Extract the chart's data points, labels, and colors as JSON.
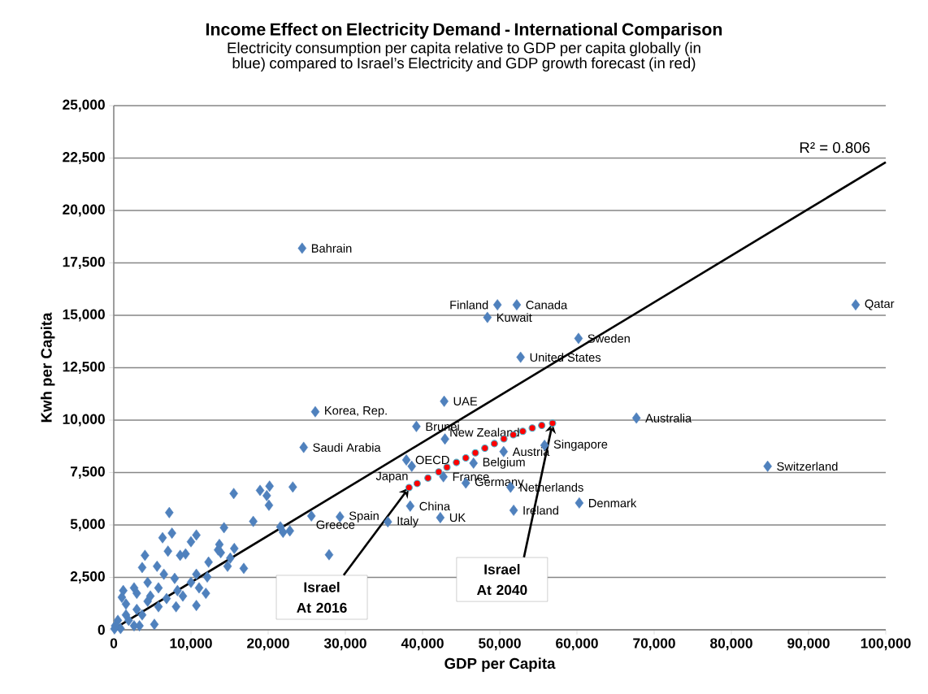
{
  "chart_data": {
    "type": "scatter",
    "title": "Income Effect on Electricity Demand - International Comparison",
    "subtitle": "Electricity consumption per capita relative to GDP per capita globally (in blue) compared to Israel’s Electricity and GDP growth forecast (in red)",
    "xlabel": "GDP per Capita",
    "ylabel": "Kwh per Capita",
    "xlim": [
      0,
      100000
    ],
    "ylim": [
      0,
      25000
    ],
    "xticks": [
      0,
      {
        "value": 10000,
        "label": "10,000"
      },
      {
        "value": 20000,
        "label": "20,000"
      },
      {
        "value": 30000,
        "label": "30,000"
      },
      {
        "value": 40000,
        "label": "40,000"
      },
      {
        "value": 50000,
        "label": "50,000"
      },
      {
        "value": 60000,
        "label": "60,000"
      },
      {
        "value": 70000,
        "label": "70,000"
      },
      {
        "value": 80000,
        "label": "80,000"
      },
      {
        "value": 90000,
        "label": "90,000"
      },
      {
        "value": 100000,
        "label": "100,000"
      }
    ],
    "yticks": [
      0,
      {
        "value": 2500,
        "label": "2,500"
      },
      {
        "value": 5000,
        "label": "5,000"
      },
      {
        "value": 7500,
        "label": "7,500"
      },
      {
        "value": 10000,
        "label": "10,000"
      },
      {
        "value": 12500,
        "label": "12,500"
      },
      {
        "value": 15000,
        "label": "15,000"
      },
      {
        "value": 17500,
        "label": "17,500"
      },
      {
        "value": 20000,
        "label": "20,000"
      },
      {
        "value": 22500,
        "label": "22,500"
      },
      {
        "value": 25000,
        "label": "25,000"
      }
    ],
    "grid": "y",
    "series": [
      {
        "color": "#4f81bd",
        "marker": "diamond",
        "x": [
          24400,
          49700,
          52200,
          48400,
          60200,
          52700,
          96100,
          42800,
          26100,
          39200,
          67700,
          24600,
          37900,
          38600,
          42900,
          50500,
          55800,
          46600,
          42700,
          45600,
          51400,
          84700,
          60300,
          51800,
          38400,
          42300,
          35500,
          29300,
          25600,
          20180,
          18950,
          19820,
          20100,
          23190,
          15540,
          7190,
          18070,
          14280,
          21580,
          22810,
          21930,
          7540,
          6320,
          10700,
          10000,
          13680,
          15610,
          7020,
          8600,
          4040,
          9300,
          13860,
          15090,
          16840,
          14740,
          12280,
          5610,
          3680,
          6490,
          7890,
          10700,
          12110,
          10000,
          11050,
          8250,
          5790,
          4390,
          2630,
          1230,
          2980,
          1050,
          4390,
          6840,
          10700,
          8070,
          5790,
          2980,
          1580,
          530,
          180,
          1930,
          3680,
          5260,
          27890,
          13510,
          11930,
          8950,
          4740,
          1580,
          3330,
          880,
          100,
          2630
        ],
        "values": [
          18200,
          15500,
          15500,
          14900,
          13900,
          13000,
          15500,
          10900,
          10400,
          9700,
          10100,
          8700,
          8100,
          7800,
          9100,
          8500,
          8800,
          7950,
          7300,
          7000,
          6800,
          7800,
          6050,
          5700,
          5900,
          5350,
          5150,
          5390,
          5430,
          6850,
          6650,
          6400,
          5940,
          6810,
          6500,
          5590,
          5170,
          4870,
          4910,
          4720,
          4650,
          4610,
          4390,
          4520,
          4200,
          4070,
          3880,
          3750,
          3550,
          3550,
          3620,
          3680,
          3420,
          2930,
          3030,
          3230,
          3030,
          2970,
          2650,
          2450,
          2650,
          2520,
          2260,
          2000,
          1870,
          2000,
          2260,
          2000,
          1870,
          1740,
          1550,
          1360,
          1490,
          1160,
          1100,
          1100,
          970,
          710,
          450,
          190,
          450,
          710,
          260,
          3580,
          3810,
          1740,
          1610,
          1610,
          1230,
          190,
          60,
          50,
          190
        ]
      },
      {
        "color": "#ff0000",
        "marker": "circle",
        "x": [
          38250,
          39300,
          40700,
          42100,
          43160,
          44390,
          45600,
          46840,
          48070,
          49300,
          50530,
          51750,
          52980,
          54210,
          55440,
          56840
        ],
        "values": [
          6780,
          6980,
          7240,
          7530,
          7750,
          7980,
          8200,
          8440,
          8660,
          8880,
          9110,
          9300,
          9470,
          9620,
          9750,
          9850
        ]
      },
      {
        "type": "line",
        "color": "#000000",
        "x": [
          500,
          100000
        ],
        "values": [
          150,
          22300
        ]
      }
    ],
    "annotations": [
      {
        "text": "Israel At 2016",
        "x": 38250,
        "y": 6780
      },
      {
        "text": "Israel At 2040",
        "x": 56840,
        "y": 9850
      },
      "R² = 0.806",
      {
        "text": "Bahrain",
        "x": 24400,
        "y": 18200
      },
      {
        "text": "Finland",
        "x": 49700,
        "y": 15500
      },
      {
        "text": "Canada",
        "x": 52200,
        "y": 15500
      },
      {
        "text": "Kuwait",
        "x": 48400,
        "y": 14900
      },
      {
        "text": "Sweden",
        "x": 60200,
        "y": 13900
      },
      {
        "text": "United States",
        "x": 52700,
        "y": 13000
      },
      {
        "text": "Qatar",
        "x": 96100,
        "y": 15500
      },
      {
        "text": "UAE",
        "x": 42800,
        "y": 10900
      },
      {
        "text": "Korea, Rep.",
        "x": 26100,
        "y": 10400
      },
      {
        "text": "Brunei",
        "x": 39200,
        "y": 9700
      },
      {
        "text": "Australia",
        "x": 67700,
        "y": 10100
      },
      {
        "text": "Saudi Arabia",
        "x": 24600,
        "y": 8700
      },
      {
        "text": "OECD",
        "x": 37900,
        "y": 8100
      },
      {
        "text": "Japan",
        "x": 38600,
        "y": 7800
      },
      {
        "text": "New Zealand",
        "x": 42900,
        "y": 9100
      },
      {
        "text": "Austria",
        "x": 50500,
        "y": 8500
      },
      {
        "text": "Singapore",
        "x": 55800,
        "y": 8800
      },
      {
        "text": "Belgium",
        "x": 46600,
        "y": 7950
      },
      {
        "text": "France",
        "x": 42700,
        "y": 7300
      },
      {
        "text": "Germany",
        "x": 45600,
        "y": 7000
      },
      {
        "text": "Netherlands",
        "x": 51400,
        "y": 6800
      },
      {
        "text": "Switzerland",
        "x": 84700,
        "y": 7800
      },
      {
        "text": "Denmark",
        "x": 60300,
        "y": 6050
      },
      {
        "text": "Ireland",
        "x": 51800,
        "y": 5700
      },
      {
        "text": "China",
        "x": 38400,
        "y": 5900
      },
      {
        "text": "UK",
        "x": 42300,
        "y": 5350
      },
      {
        "text": "Italy",
        "x": 35500,
        "y": 5150
      },
      {
        "text": "Spain",
        "x": 29300,
        "y": 5390
      },
      {
        "text": "Greece",
        "x": 25600,
        "y": 5430
      }
    ]
  }
}
